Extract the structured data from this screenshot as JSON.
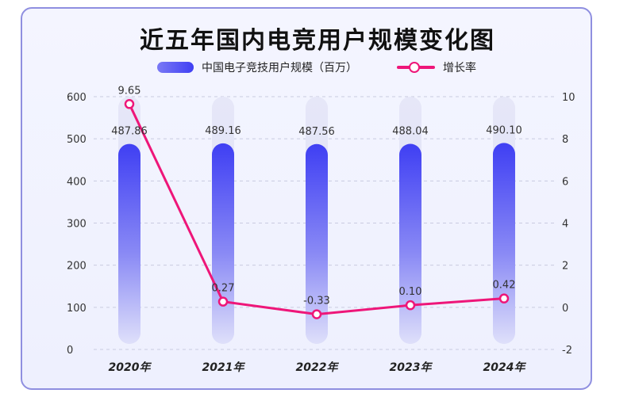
{
  "title": "近五年国内电竞用户规模变化图",
  "legend": {
    "bar_label": "中国电子竞技用户规模（百万）",
    "line_label": "增长率"
  },
  "colors": {
    "bar_top": "#3f3ff3",
    "bar_bottom": "#d8dafb",
    "line": "#ee1679",
    "border": "#8f8fe0"
  },
  "chart_data": {
    "type": "bar",
    "categories": [
      "2020年",
      "2021年",
      "2022年",
      "2023年",
      "2024年"
    ],
    "series": [
      {
        "name": "中国电子竞技用户规模（百万）",
        "type": "bar",
        "axis": "left",
        "values": [
          487.86,
          489.16,
          487.56,
          488.04,
          490.1
        ],
        "labels": [
          "487.86",
          "489.16",
          "487.56",
          "488.04",
          "490.10"
        ]
      },
      {
        "name": "增长率",
        "type": "line",
        "axis": "right",
        "values": [
          9.65,
          0.27,
          -0.33,
          0.1,
          0.42
        ],
        "labels": [
          "9.65",
          "0.27",
          "-0.33",
          "0.10",
          "0.42"
        ]
      }
    ],
    "yleft": {
      "ticks": [
        0,
        100,
        200,
        300,
        400,
        500,
        600
      ],
      "lim": [
        0,
        600
      ]
    },
    "yright": {
      "ticks": [
        -2,
        0,
        2,
        4,
        6,
        8,
        10
      ],
      "lim": [
        -2,
        10
      ]
    },
    "grid": true,
    "legend_position": "top"
  }
}
